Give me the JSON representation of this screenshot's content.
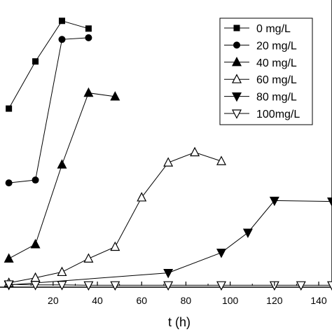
{
  "chart_data": {
    "type": "line",
    "xlabel": "t (h)",
    "ylabel": "",
    "xlim": [
      -4,
      146
    ],
    "ylim": [
      0,
      1
    ],
    "xticks": [
      20,
      40,
      60,
      80,
      100,
      120,
      140
    ],
    "legend_position": "top-right",
    "grid": false,
    "series": [
      {
        "name": "0 mg/L",
        "marker": "square",
        "x": [
          0,
          12,
          24,
          36
        ],
        "y": [
          0.62,
          0.785,
          0.927,
          0.9
        ]
      },
      {
        "name": "20 mg/L",
        "marker": "circle",
        "x": [
          0,
          12,
          24,
          36
        ],
        "y": [
          0.36,
          0.37,
          0.862,
          0.868
        ]
      },
      {
        "name": "40 mg/L",
        "marker": "triangle-up",
        "x": [
          0,
          12,
          24,
          36,
          48
        ],
        "y": [
          0.095,
          0.145,
          0.424,
          0.675,
          0.662
        ]
      },
      {
        "name": "60 mg/L",
        "marker": "triangle-up-open",
        "x": [
          0,
          12,
          24,
          36,
          48,
          60,
          72,
          84,
          96
        ],
        "y": [
          0.01,
          0.028,
          0.048,
          0.095,
          0.136,
          0.309,
          0.431,
          0.467,
          0.436
        ]
      },
      {
        "name": "80 mg/L",
        "marker": "triangle-down",
        "x": [
          0,
          72,
          96,
          108,
          120,
          146
        ],
        "y": [
          0.003,
          0.045,
          0.116,
          0.186,
          0.298,
          0.295
        ]
      },
      {
        "name": "100mg/L",
        "marker": "triangle-down-open",
        "x": [
          0,
          12,
          24,
          36,
          48,
          72,
          96,
          120,
          132,
          146
        ],
        "y": [
          0.005,
          0.003,
          0.003,
          0.002,
          0.002,
          0.002,
          0.002,
          0.002,
          0.002,
          0.002
        ]
      }
    ]
  }
}
